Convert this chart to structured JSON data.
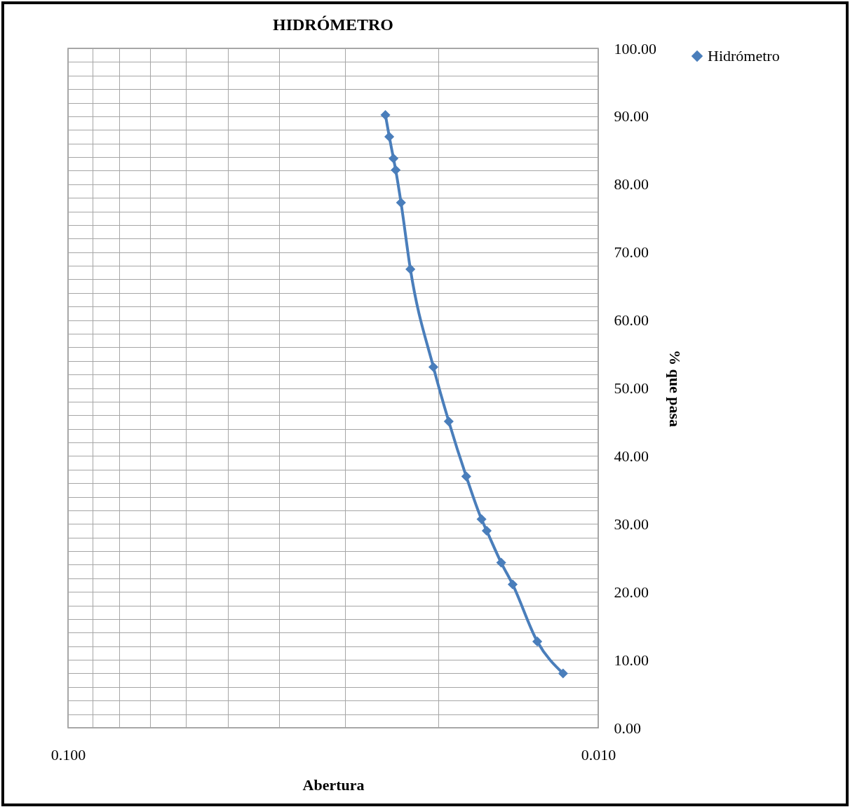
{
  "chart_data": {
    "type": "line",
    "title": "HIDRÓMETRO",
    "xlabel": "Abertura",
    "ylabel": "% que pasa",
    "x": [
      0.0252,
      0.02478,
      0.02433,
      0.0241,
      0.02355,
      0.02261,
      0.02046,
      0.01914,
      0.01774,
      0.0166,
      0.01623,
      0.01524,
      0.0145,
      0.01303,
      0.01165
    ],
    "series": [
      {
        "name": "Hidrómetro",
        "color": "#4a7ebb",
        "values": [
          90.2,
          87.0,
          83.8,
          82.1,
          77.3,
          67.5,
          53.1,
          45.1,
          37.0,
          30.7,
          29.0,
          24.3,
          21.1,
          12.7,
          8.0
        ]
      }
    ],
    "log": "x",
    "xlim": [
      0.1,
      0.01
    ],
    "xticks": [
      {
        "value": 0.1,
        "label": "0.100"
      },
      {
        "value": 0.09,
        "label": null
      },
      {
        "value": 0.08,
        "label": null
      },
      {
        "value": 0.07,
        "label": null
      },
      {
        "value": 0.06,
        "label": null
      },
      {
        "value": 0.05,
        "label": null
      },
      {
        "value": 0.04,
        "label": null
      },
      {
        "value": 0.03,
        "label": null
      },
      {
        "value": 0.02,
        "label": null
      },
      {
        "value": 0.01,
        "label": "0.010"
      }
    ],
    "ylim": [
      0,
      100
    ],
    "yticks": [
      {
        "value": 0,
        "label": "0.00"
      },
      {
        "value": 2,
        "label": null
      },
      {
        "value": 4,
        "label": null
      },
      {
        "value": 6,
        "label": null
      },
      {
        "value": 8,
        "label": null
      },
      {
        "value": 10,
        "label": "10.00"
      },
      {
        "value": 12,
        "label": null
      },
      {
        "value": 14,
        "label": null
      },
      {
        "value": 16,
        "label": null
      },
      {
        "value": 18,
        "label": null
      },
      {
        "value": 20,
        "label": "20.00"
      },
      {
        "value": 22,
        "label": null
      },
      {
        "value": 24,
        "label": null
      },
      {
        "value": 26,
        "label": null
      },
      {
        "value": 28,
        "label": null
      },
      {
        "value": 30,
        "label": "30.00"
      },
      {
        "value": 32,
        "label": null
      },
      {
        "value": 34,
        "label": null
      },
      {
        "value": 36,
        "label": null
      },
      {
        "value": 38,
        "label": null
      },
      {
        "value": 40,
        "label": "40.00"
      },
      {
        "value": 42,
        "label": null
      },
      {
        "value": 44,
        "label": null
      },
      {
        "value": 46,
        "label": null
      },
      {
        "value": 48,
        "label": null
      },
      {
        "value": 50,
        "label": "50.00"
      },
      {
        "value": 52,
        "label": null
      },
      {
        "value": 54,
        "label": null
      },
      {
        "value": 56,
        "label": null
      },
      {
        "value": 58,
        "label": null
      },
      {
        "value": 60,
        "label": "60.00"
      },
      {
        "value": 62,
        "label": null
      },
      {
        "value": 64,
        "label": null
      },
      {
        "value": 66,
        "label": null
      },
      {
        "value": 68,
        "label": null
      },
      {
        "value": 70,
        "label": "70.00"
      },
      {
        "value": 72,
        "label": null
      },
      {
        "value": 74,
        "label": null
      },
      {
        "value": 76,
        "label": null
      },
      {
        "value": 78,
        "label": null
      },
      {
        "value": 80,
        "label": "80.00"
      },
      {
        "value": 82,
        "label": null
      },
      {
        "value": 84,
        "label": null
      },
      {
        "value": 86,
        "label": null
      },
      {
        "value": 88,
        "label": null
      },
      {
        "value": 90,
        "label": "90.00"
      },
      {
        "value": 92,
        "label": null
      },
      {
        "value": 94,
        "label": null
      },
      {
        "value": 96,
        "label": null
      },
      {
        "value": 98,
        "label": null
      },
      {
        "value": 100,
        "label": "100.00"
      }
    ],
    "grid": true,
    "legend": "right",
    "marker": "diamond",
    "line_style": "solid"
  }
}
